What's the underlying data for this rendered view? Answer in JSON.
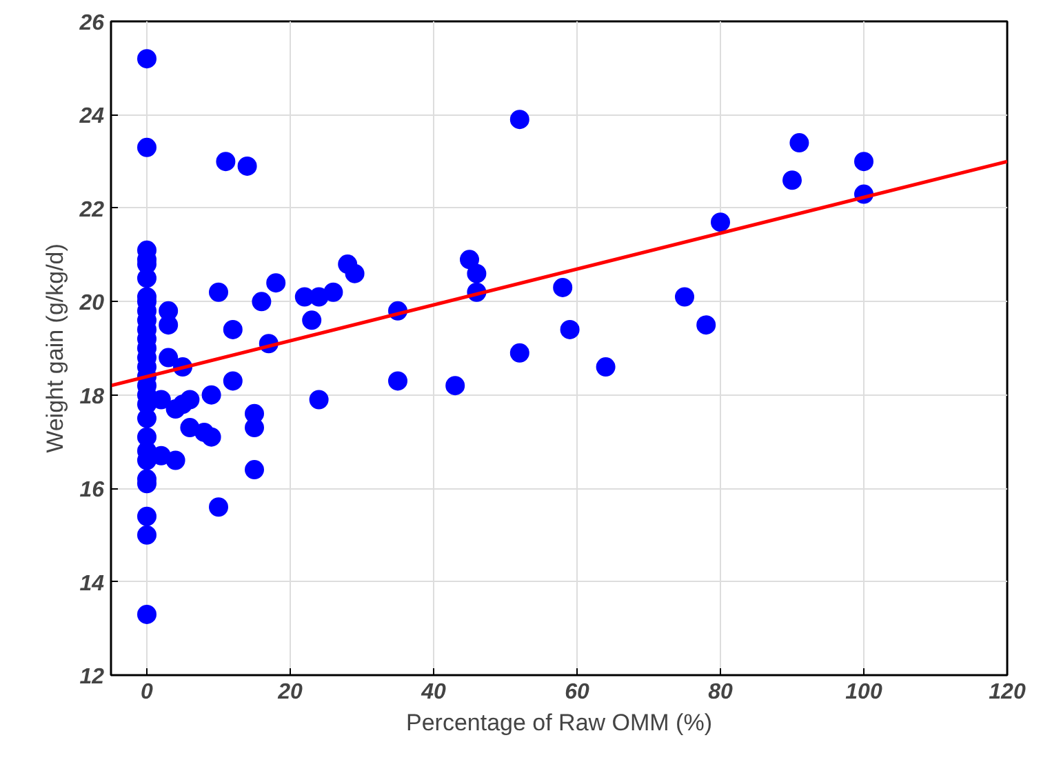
{
  "chart_data": {
    "type": "scatter",
    "xlabel": "Percentage of Raw OMM (%)",
    "ylabel": "Weight gain (g/kg/d)",
    "xlim": [
      -5,
      120
    ],
    "ylim": [
      12,
      26
    ],
    "xticks": [
      0,
      20,
      40,
      60,
      80,
      100,
      120
    ],
    "yticks": [
      12,
      14,
      16,
      18,
      20,
      22,
      24,
      26
    ],
    "grid": true,
    "series": [
      {
        "marker": "circle",
        "color": "#0000ff",
        "x": [
          0,
          0,
          0,
          0,
          0,
          0,
          0,
          0,
          0,
          0,
          0,
          0,
          0,
          0,
          0,
          0,
          0,
          0,
          0,
          0,
          0,
          0,
          0,
          0,
          0,
          0,
          0,
          0,
          2,
          2,
          3,
          3,
          3,
          4,
          4,
          5,
          5,
          6,
          6,
          8,
          9,
          9,
          10,
          10,
          11,
          12,
          12,
          14,
          15,
          15,
          15,
          16,
          17,
          18,
          22,
          23,
          24,
          24,
          26,
          28,
          29,
          35,
          35,
          43,
          45,
          46,
          46,
          52,
          52,
          58,
          59,
          64,
          75,
          78,
          80,
          90,
          91,
          100,
          100
        ],
        "values": [
          25.2,
          23.3,
          21.1,
          20.9,
          20.8,
          20.5,
          20.1,
          20.0,
          19.8,
          19.6,
          19.4,
          19.2,
          19.0,
          18.8,
          18.6,
          18.4,
          18.2,
          18.0,
          17.8,
          17.5,
          17.1,
          16.8,
          16.6,
          16.2,
          16.1,
          15.4,
          15.0,
          13.3,
          17.9,
          16.7,
          19.8,
          19.5,
          18.8,
          17.7,
          16.6,
          18.6,
          17.8,
          17.9,
          17.3,
          17.2,
          18.0,
          17.1,
          20.2,
          15.6,
          23.0,
          19.4,
          18.3,
          22.9,
          17.6,
          17.3,
          16.4,
          20.0,
          19.1,
          20.4,
          20.1,
          19.6,
          20.1,
          17.9,
          20.2,
          20.8,
          20.6,
          19.8,
          18.3,
          18.2,
          20.9,
          20.6,
          20.2,
          23.9,
          18.9,
          20.3,
          19.4,
          18.6,
          20.1,
          19.5,
          21.7,
          22.6,
          23.4,
          23.0,
          22.3
        ]
      },
      {
        "type": "line",
        "color": "#ff0000",
        "x": [
          -5,
          120
        ],
        "values": [
          18.2,
          23.0
        ]
      }
    ]
  }
}
